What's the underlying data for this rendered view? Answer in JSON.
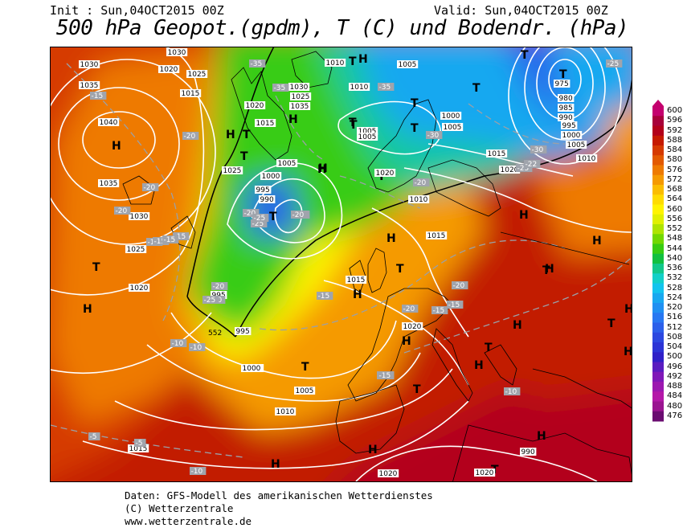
{
  "header": {
    "init": "Init : Sun,04OCT2015 00Z",
    "valid": "Valid: Sun,04OCT2015 00Z",
    "title": "500 hPa Geopot.(gpdm), T (C) und Bodendr. (hPa)"
  },
  "legend": {
    "values": [
      "600",
      "596",
      "592",
      "588",
      "584",
      "580",
      "576",
      "572",
      "568",
      "564",
      "560",
      "556",
      "552",
      "548",
      "544",
      "540",
      "536",
      "532",
      "528",
      "524",
      "520",
      "516",
      "512",
      "508",
      "504",
      "500",
      "496",
      "492",
      "488",
      "484",
      "480",
      "476"
    ],
    "colors": [
      "#c4006e",
      "#a8003a",
      "#b3001a",
      "#c61a00",
      "#d63a00",
      "#e35a00",
      "#ee7a00",
      "#f59a00",
      "#fbbd00",
      "#ffdc00",
      "#fff400",
      "#e0f000",
      "#aee400",
      "#72d800",
      "#38cc12",
      "#12c040",
      "#12c88a",
      "#12d0c8",
      "#12c4ee",
      "#18a8f0",
      "#2090f2",
      "#2878f2",
      "#2c60ea",
      "#2c48e0",
      "#2c34d6",
      "#3020c8",
      "#5a1cc0",
      "#8018b8",
      "#9c18b0",
      "#b418a8",
      "#9a1490",
      "#6a0c70"
    ]
  },
  "map_labels": {
    "highs": [
      "H",
      "H",
      "H",
      "H",
      "H",
      "H",
      "H",
      "H",
      "H",
      "H",
      "H",
      "H",
      "H",
      "H",
      "H",
      "H",
      "H",
      "H",
      "H",
      "H"
    ],
    "lows": [
      "T",
      "T",
      "T",
      "T",
      "T",
      "T",
      "T",
      "T",
      "T",
      "T",
      "T",
      "T",
      "T",
      "T",
      "T",
      "T",
      "T",
      "T",
      "T",
      "T"
    ],
    "isobars": [
      "1030",
      "1035",
      "1040",
      "1035",
      "1030",
      "1025",
      "1020",
      "1030",
      "1020",
      "1025",
      "1015",
      "1020",
      "1015",
      "1030",
      "1025",
      "1035",
      "1005",
      "1000",
      "995",
      "990",
      "1010",
      "1005",
      "1010",
      "1005",
      "1000",
      "1005",
      "1005",
      "995",
      "1000",
      "975",
      "980",
      "985",
      "990",
      "995",
      "1000",
      "1005",
      "1010",
      "1015",
      "1020",
      "1025",
      "1010",
      "1020",
      "1015",
      "1015",
      "1020",
      "1000",
      "1005",
      "1010",
      "1015",
      "1020",
      "1020",
      "990",
      "995"
    ],
    "isotherms": [
      "-15",
      "-20",
      "-15",
      "-20",
      "-25",
      "-20",
      "-35",
      "-35",
      "-35",
      "-25",
      "-30",
      "-25",
      "-20",
      "-20",
      "-15",
      "-15",
      "-20",
      "-15",
      "-15",
      "-10",
      "-15",
      "-15",
      "-20",
      "-15",
      "-15",
      "-10",
      "-10",
      "-5",
      "-5",
      "-10",
      "-25",
      "-22",
      "-30",
      "-20",
      "-15",
      "-10",
      "-20",
      "-25",
      "-20",
      "-15"
    ],
    "contour_552": "552"
  },
  "footer": {
    "line1": "Daten: GFS-Modell des amerikanischen Wetterdienstes",
    "line2": "(C) Wetterzentrale",
    "line3": "www.wetterzentrale.de"
  }
}
